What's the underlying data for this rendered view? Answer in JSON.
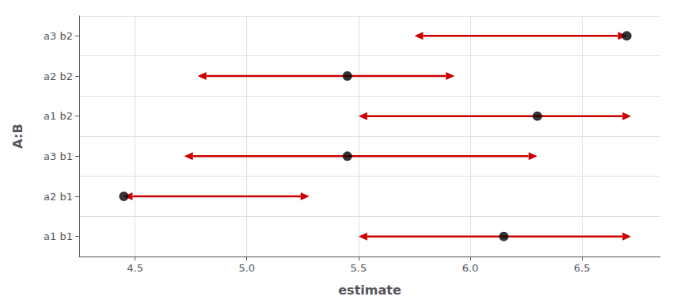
{
  "chart_data": {
    "type": "interval",
    "xlabel": "estimate",
    "ylabel": "A:B",
    "categories": [
      "a1 b1",
      "a2 b1",
      "a3 b1",
      "a1 b2",
      "a2 b2",
      "a3 b2"
    ],
    "series": [
      {
        "type": "scatter",
        "color": "black",
        "values": [
          6.15,
          4.45,
          5.45,
          6.3,
          5.45,
          6.7
        ]
      },
      {
        "type": "arrow",
        "color": "#cc0000",
        "lower": [
          5.5,
          4.45,
          4.72,
          5.5,
          4.78,
          5.75
        ],
        "upper": [
          6.72,
          5.28,
          6.3,
          6.72,
          5.93,
          6.7
        ]
      }
    ],
    "xlim": [
      4.25,
      6.85
    ],
    "xticks": [
      4.5,
      {
        "value": 5,
        "label": "5.0"
      },
      5.5,
      {
        "value": 6,
        "label": "6.0"
      },
      6.5
    ],
    "grid": true
  }
}
